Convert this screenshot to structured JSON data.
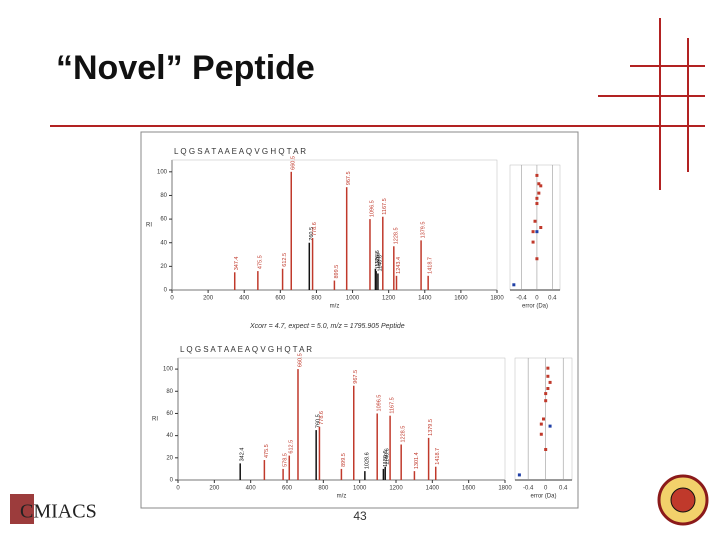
{
  "title": "“Novel” Peptide",
  "page_number": "43",
  "logo": "CMIACS",
  "caption": "Xcorr = 4.7, expect = 5.0, m/z = 1795.905 Peptide",
  "chart_data": [
    {
      "type": "bar",
      "sequence": "L Q G S A T A A E A Q V G H Q T A R",
      "xlabel": "m/z",
      "ylabel": "RI",
      "x": [
        347.4,
        475.5,
        612.5,
        660.5,
        760.5,
        778.6,
        899.5,
        967.5,
        1096.5,
        1126.6,
        1130.6,
        1140.6,
        1167.5,
        1228.5,
        1243.4,
        1379.5,
        1418.7
      ],
      "values": [
        15,
        16,
        18,
        100,
        40,
        44,
        8,
        87,
        60,
        18,
        16,
        14,
        62,
        37,
        12,
        42,
        12
      ],
      "colors": [
        "#c0392b",
        "#c0392b",
        "#c0392b",
        "#c0392b",
        "#111111",
        "#c0392b",
        "#c0392b",
        "#c0392b",
        "#c0392b",
        "#111111",
        "#111111",
        "#111111",
        "#c0392b",
        "#c0392b",
        "#c0392b",
        "#c0392b",
        "#c0392b"
      ],
      "xlim": [
        0,
        1800
      ],
      "xticks": [
        0,
        200,
        400,
        600,
        800,
        1000,
        1200,
        1400,
        1600,
        1800
      ],
      "ylim": [
        0,
        110
      ],
      "yticks": [
        0,
        20,
        40,
        60,
        80,
        100
      ]
    },
    {
      "type": "scatter",
      "xlabel": "error (Da)",
      "xlim": [
        -0.7,
        0.6
      ],
      "xticks": [
        -0.4,
        0,
        0.4
      ],
      "ylim": [
        0,
        12
      ],
      "series": [
        {
          "color": "#c0392b",
          "x": [
            0.0,
            0.05,
            0.1,
            0.05,
            0.0,
            0.0,
            -0.05,
            -0.1,
            -0.1,
            0.1,
            0.0
          ],
          "y": [
            11,
            10.2,
            10,
            9.3,
            8.8,
            8.3,
            6.6,
            5.6,
            4.6,
            6,
            3
          ]
        },
        {
          "color": "#1f3fa6",
          "x": [
            0.0,
            -0.6
          ],
          "y": [
            5.6,
            0.5
          ]
        }
      ]
    },
    {
      "type": "bar",
      "sequence": "L Q G S A T A A E A Q V G H Q T A R",
      "xlabel": "m/z",
      "ylabel": "RI",
      "x": [
        342.4,
        475.5,
        578.5,
        612.5,
        660.5,
        760.5,
        778.6,
        899.5,
        967.5,
        1028.6,
        1096.5,
        1130.6,
        1140.6,
        1167.5,
        1228.5,
        1301.4,
        1379.5,
        1418.7
      ],
      "values": [
        15,
        18,
        10,
        22,
        100,
        45,
        48,
        10,
        85,
        8,
        60,
        10,
        12,
        58,
        32,
        8,
        38,
        12
      ],
      "colors": [
        "#111111",
        "#c0392b",
        "#c0392b",
        "#c0392b",
        "#c0392b",
        "#111111",
        "#c0392b",
        "#c0392b",
        "#c0392b",
        "#111111",
        "#c0392b",
        "#111111",
        "#111111",
        "#c0392b",
        "#c0392b",
        "#c0392b",
        "#c0392b",
        "#c0392b"
      ],
      "xlim": [
        0,
        1800
      ],
      "xticks": [
        0,
        200,
        400,
        600,
        800,
        1000,
        1200,
        1400,
        1600,
        1800
      ],
      "ylim": [
        0,
        110
      ],
      "yticks": [
        0,
        20,
        40,
        60,
        80,
        100
      ]
    },
    {
      "type": "scatter",
      "xlabel": "error (Da)",
      "xlim": [
        -0.7,
        0.6
      ],
      "xticks": [
        -0.4,
        0,
        0.4
      ],
      "ylim": [
        0,
        12
      ],
      "series": [
        {
          "color": "#c0392b",
          "x": [
            0.05,
            0.05,
            0.1,
            0.05,
            0.0,
            0.0,
            -0.05,
            -0.1,
            -0.1,
            0.0
          ],
          "y": [
            11,
            10.2,
            9.6,
            9,
            8.5,
            7.8,
            6,
            5.5,
            4.5,
            3
          ]
        },
        {
          "color": "#1f3fa6",
          "x": [
            0.1,
            -0.6
          ],
          "y": [
            5.3,
            0.5
          ]
        }
      ]
    }
  ]
}
